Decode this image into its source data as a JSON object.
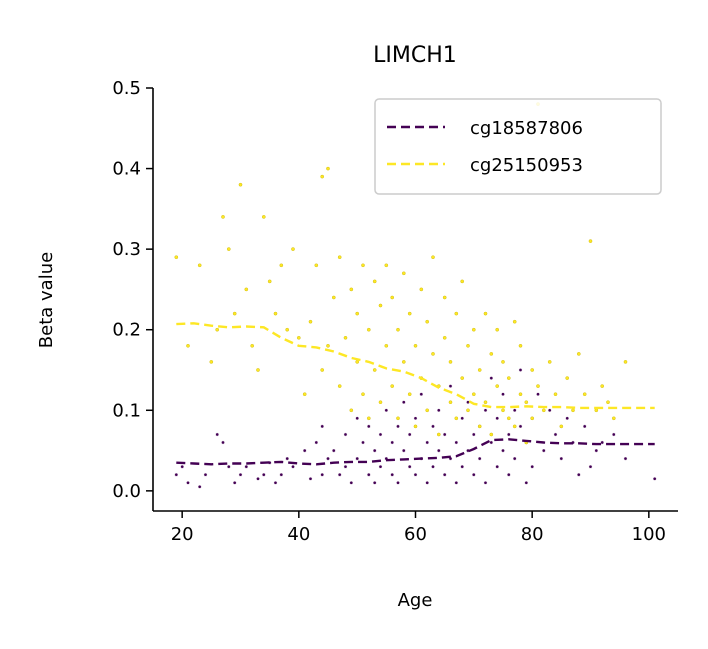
{
  "chart_data": {
    "type": "scatter",
    "title": "LIMCH1",
    "xlabel": "Age",
    "ylabel": "Beta value",
    "xlim": [
      15,
      105
    ],
    "ylim": [
      -0.025,
      0.5
    ],
    "xticks": [
      20,
      40,
      60,
      80,
      100
    ],
    "yticks": [
      0.0,
      0.1,
      0.2,
      0.3,
      0.4,
      0.5
    ],
    "xtick_labels": [
      "20",
      "40",
      "60",
      "80",
      "100"
    ],
    "ytick_labels": [
      "0.0",
      "0.1",
      "0.2",
      "0.3",
      "0.4",
      "0.5"
    ],
    "grid": false,
    "legend_position": "top-right",
    "series": [
      {
        "name": "cg18587806",
        "color": "#440154",
        "trend": {
          "x": [
            19,
            22,
            25,
            28,
            31,
            34,
            37,
            40,
            43,
            46,
            49,
            52,
            55,
            58,
            61,
            64,
            67,
            70,
            73,
            76,
            79,
            82,
            85,
            88,
            91,
            94,
            97,
            101
          ],
          "y": [
            0.035,
            0.034,
            0.033,
            0.034,
            0.034,
            0.035,
            0.036,
            0.034,
            0.033,
            0.035,
            0.036,
            0.036,
            0.038,
            0.039,
            0.04,
            0.041,
            0.043,
            0.052,
            0.063,
            0.064,
            0.062,
            0.06,
            0.059,
            0.059,
            0.058,
            0.058,
            0.058,
            0.058
          ]
        },
        "points": {
          "x": [
            19,
            20,
            21,
            23,
            24,
            26,
            27,
            28,
            29,
            30,
            31,
            33,
            34,
            35,
            36,
            37,
            38,
            39,
            41,
            42,
            43,
            44,
            44,
            45,
            46,
            47,
            48,
            48,
            49,
            50,
            50,
            51,
            52,
            52,
            53,
            53,
            54,
            54,
            55,
            55,
            56,
            56,
            57,
            57,
            58,
            58,
            59,
            59,
            60,
            60,
            61,
            61,
            62,
            62,
            63,
            63,
            64,
            64,
            65,
            65,
            66,
            66,
            67,
            67,
            68,
            68,
            69,
            69,
            70,
            70,
            71,
            71,
            72,
            72,
            73,
            73,
            74,
            74,
            75,
            75,
            76,
            76,
            77,
            77,
            78,
            78,
            79,
            79,
            80,
            80,
            81,
            82,
            83,
            84,
            85,
            86,
            87,
            88,
            89,
            90,
            91,
            92,
            94,
            96,
            101
          ],
          "y": [
            0.02,
            0.03,
            0.01,
            0.005,
            0.02,
            0.07,
            0.06,
            0.03,
            0.01,
            0.02,
            0.03,
            0.015,
            0.02,
            0.035,
            0.01,
            0.02,
            0.04,
            0.03,
            0.05,
            0.015,
            0.06,
            0.02,
            0.08,
            0.04,
            0.05,
            0.02,
            0.07,
            0.03,
            0.01,
            0.09,
            0.04,
            0.06,
            0.02,
            0.08,
            0.05,
            0.01,
            0.07,
            0.03,
            0.1,
            0.04,
            0.02,
            0.06,
            0.08,
            0.01,
            0.05,
            0.11,
            0.03,
            0.07,
            0.02,
            0.09,
            0.04,
            0.12,
            0.06,
            0.01,
            0.08,
            0.03,
            0.05,
            0.1,
            0.02,
            0.07,
            0.04,
            0.13,
            0.06,
            0.01,
            0.09,
            0.03,
            0.05,
            0.11,
            0.07,
            0.02,
            0.08,
            0.04,
            0.1,
            0.01,
            0.06,
            0.14,
            0.03,
            0.09,
            0.05,
            0.12,
            0.07,
            0.02,
            0.1,
            0.04,
            0.08,
            0.15,
            0.06,
            0.01,
            0.09,
            0.03,
            0.12,
            0.05,
            0.1,
            0.07,
            0.04,
            0.09,
            0.06,
            0.02,
            0.08,
            0.03,
            0.05,
            0.06,
            0.07,
            0.04,
            0.015
          ]
        }
      },
      {
        "name": "cg25150953",
        "color": "#fde725",
        "trend": {
          "x": [
            19,
            22,
            25,
            28,
            31,
            34,
            37,
            40,
            43,
            46,
            49,
            52,
            55,
            58,
            61,
            64,
            67,
            70,
            73,
            76,
            79,
            82,
            85,
            88,
            91,
            94,
            97,
            101
          ],
          "y": [
            0.207,
            0.208,
            0.205,
            0.203,
            0.204,
            0.203,
            0.19,
            0.18,
            0.178,
            0.173,
            0.165,
            0.16,
            0.152,
            0.148,
            0.14,
            0.128,
            0.12,
            0.108,
            0.104,
            0.104,
            0.105,
            0.104,
            0.104,
            0.103,
            0.103,
            0.103,
            0.103,
            0.103
          ]
        },
        "points": {
          "x": [
            19,
            21,
            23,
            25,
            26,
            27,
            28,
            29,
            30,
            31,
            32,
            33,
            34,
            35,
            36,
            37,
            38,
            39,
            40,
            41,
            42,
            43,
            44,
            44,
            45,
            45,
            46,
            47,
            47,
            48,
            49,
            49,
            50,
            50,
            51,
            51,
            52,
            52,
            53,
            53,
            54,
            54,
            55,
            55,
            56,
            56,
            57,
            57,
            58,
            58,
            59,
            59,
            60,
            60,
            61,
            61,
            62,
            62,
            63,
            63,
            64,
            64,
            65,
            65,
            66,
            66,
            67,
            67,
            68,
            68,
            69,
            69,
            70,
            70,
            71,
            71,
            72,
            72,
            73,
            73,
            74,
            74,
            75,
            75,
            76,
            76,
            77,
            77,
            78,
            78,
            79,
            79,
            80,
            80,
            81,
            81,
            82,
            83,
            84,
            85,
            86,
            87,
            88,
            89,
            90,
            91,
            92,
            93,
            94,
            96
          ],
          "y": [
            0.29,
            0.18,
            0.28,
            0.16,
            0.2,
            0.34,
            0.3,
            0.22,
            0.38,
            0.25,
            0.18,
            0.15,
            0.34,
            0.26,
            0.22,
            0.28,
            0.2,
            0.3,
            0.19,
            0.12,
            0.21,
            0.28,
            0.39,
            0.15,
            0.4,
            0.18,
            0.24,
            0.13,
            0.29,
            0.19,
            0.25,
            0.1,
            0.22,
            0.16,
            0.28,
            0.12,
            0.2,
            0.09,
            0.26,
            0.15,
            0.11,
            0.23,
            0.18,
            0.28,
            0.13,
            0.24,
            0.09,
            0.2,
            0.16,
            0.27,
            0.12,
            0.22,
            0.08,
            0.18,
            0.25,
            0.14,
            0.1,
            0.21,
            0.17,
            0.29,
            0.13,
            0.07,
            0.19,
            0.24,
            0.11,
            0.16,
            0.09,
            0.22,
            0.14,
            0.26,
            0.1,
            0.18,
            0.12,
            0.2,
            0.08,
            0.15,
            0.22,
            0.11,
            0.17,
            0.07,
            0.13,
            0.2,
            0.1,
            0.16,
            0.09,
            0.14,
            0.21,
            0.08,
            0.12,
            0.18,
            0.06,
            0.11,
            0.15,
            0.09,
            0.13,
            0.48,
            0.1,
            0.16,
            0.12,
            0.08,
            0.14,
            0.1,
            0.17,
            0.12,
            0.31,
            0.1,
            0.13,
            0.11,
            0.09,
            0.16
          ]
        }
      }
    ]
  }
}
